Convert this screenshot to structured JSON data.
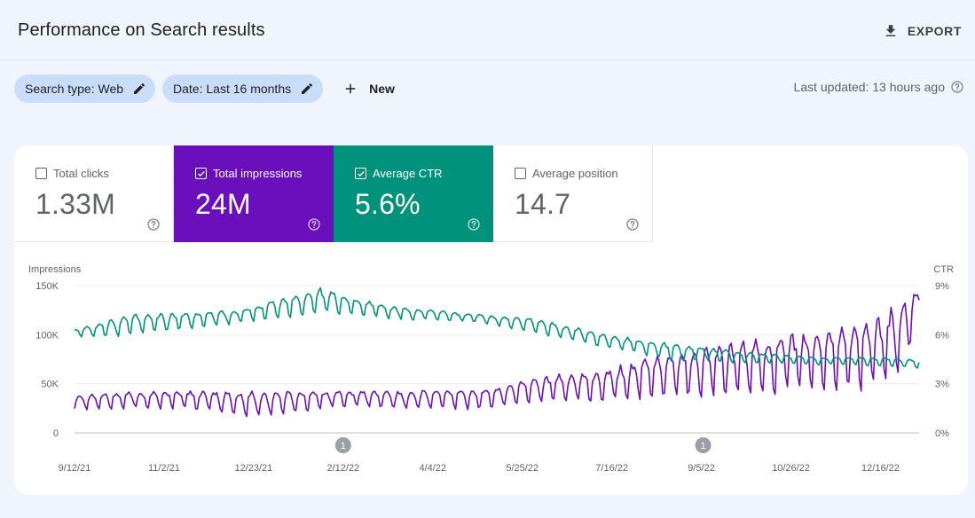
{
  "header": {
    "title": "Performance on Search results",
    "export_label": "EXPORT"
  },
  "filters": {
    "search_type": "Search type: Web",
    "date": "Date: Last 16 months",
    "new_label": "New",
    "last_updated": "Last updated: 13 hours ago"
  },
  "metrics": {
    "clicks": {
      "label": "Total clicks",
      "value": "1.33M",
      "checked": false
    },
    "impressions": {
      "label": "Total impressions",
      "value": "24M",
      "checked": true,
      "color": "#6a0fbc"
    },
    "ctr": {
      "label": "Average CTR",
      "value": "5.6%",
      "checked": true,
      "color": "#00927a"
    },
    "position": {
      "label": "Average position",
      "value": "14.7",
      "checked": false
    }
  },
  "icons": {
    "export": "download-icon",
    "edit": "pencil-icon",
    "new": "plus-icon",
    "help": "help-circle-icon",
    "annotation": "annotation-badge-icon"
  },
  "chart_data": {
    "type": "line",
    "left_axis_title": "Impressions",
    "right_axis_title": "CTR",
    "left_ticks": [
      "0",
      "50K",
      "100K",
      "150K"
    ],
    "left_range": [
      0,
      150000
    ],
    "right_ticks": [
      "0%",
      "3%",
      "6%",
      "9%"
    ],
    "right_range": [
      0,
      9
    ],
    "x_ticks": [
      "9/12/21",
      "11/2/21",
      "12/23/21",
      "2/12/22",
      "4/4/22",
      "5/25/22",
      "7/16/22",
      "9/5/22",
      "10/26/22",
      "12/16/22"
    ],
    "days": 482,
    "annotations": [
      {
        "label": "1",
        "day": 153
      },
      {
        "label": "1",
        "day": 358
      }
    ],
    "series": [
      {
        "name": "Impressions",
        "axis": "left",
        "color": "#6a0fbc",
        "note": "daily values, weekly cycle; weekly low/high anchor points (day, low, high)",
        "anchors": [
          [
            0,
            25000,
            38000
          ],
          [
            60,
            26000,
            42000
          ],
          [
            100,
            17000,
            40000
          ],
          [
            150,
            27000,
            42000
          ],
          [
            190,
            26000,
            41000
          ],
          [
            240,
            25000,
            45000
          ],
          [
            260,
            32000,
            55000
          ],
          [
            300,
            32000,
            60000
          ],
          [
            340,
            38000,
            80000
          ],
          [
            380,
            42000,
            88000
          ],
          [
            420,
            45000,
            98000
          ],
          [
            460,
            50000,
            112000
          ],
          [
            470,
            55000,
            130000
          ],
          [
            481,
            125000,
            142000
          ]
        ]
      },
      {
        "name": "CTR",
        "axis": "right",
        "color": "#00927a",
        "note": "daily values in %, weekly cycle; weekly low/high anchor points (day, low, high)",
        "anchors": [
          [
            0,
            5.9,
            6.3
          ],
          [
            30,
            6.0,
            7.1
          ],
          [
            90,
            6.7,
            7.4
          ],
          [
            140,
            7.4,
            8.7
          ],
          [
            180,
            7.0,
            7.7
          ],
          [
            230,
            6.8,
            7.2
          ],
          [
            260,
            6.2,
            7.0
          ],
          [
            300,
            5.3,
            6.0
          ],
          [
            340,
            4.5,
            5.4
          ],
          [
            380,
            4.3,
            4.9
          ],
          [
            420,
            4.2,
            4.6
          ],
          [
            460,
            4.1,
            4.6
          ],
          [
            481,
            4.0,
            4.4
          ]
        ]
      }
    ]
  }
}
